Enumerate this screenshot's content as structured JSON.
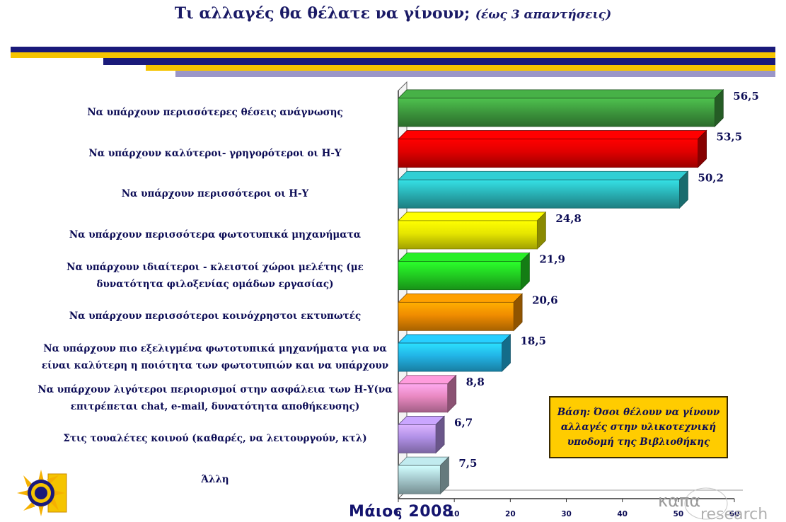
{
  "title": {
    "main": "Τι αλλαγές θα θέλατε να γίνουν;",
    "sub": "(έως 3 απαντήσεις)"
  },
  "note": {
    "line1": "Βάση: Όσοι θέλουν να γίνουν",
    "line2": "αλλαγές στην υλικοτεχνική",
    "line3": "υποδομή της Βιβλιοθήκης"
  },
  "date": "Μάιος 2008",
  "logo_right": {
    "line1": "καπα",
    "line2": "research"
  },
  "colors": {
    "navy": "#1a1a7a",
    "gold": "#f5c400",
    "lavender": "#9a96c8",
    "label": "#0c0c55"
  },
  "chart_data": {
    "type": "bar",
    "orientation": "horizontal",
    "categories": [
      [
        "Να υπάρχουν περισσότερες θέσεις ανάγνωσης"
      ],
      [
        "Να υπάρχουν καλύτεροι- γρηγορότεροι οι Η-Υ"
      ],
      [
        "Να υπάρχουν περισσότεροι οι Η-Υ"
      ],
      [
        "Να υπάρχουν περισσότερα φωτοτυπικά μηχανήματα"
      ],
      [
        "Να υπάρχουν ιδιαίτεροι - κλειστοί  χώροι μελέτης (με",
        "δυνατότητα φιλοξενίας ομάδων εργασίας)"
      ],
      [
        "Να υπάρχουν περισσότεροι κοινόχρηστοι εκτυπωτές"
      ],
      [
        "Να υπάρχουν πιο εξελιγμένα φωτοτυπικά μηχανήματα για να",
        "είναι καλύτερη η ποιότητα των φωτοτυπιών και να υπάρχουν"
      ],
      [
        "Να υπάρχουν λιγότεροι περιορισμοί στην ασφάλεια των Η-Υ(να",
        "επιτρέπεται chat, e-mail, δυνατότητα αποθήκευσης)"
      ],
      [
        "Στις τουαλέτες κοινού (καθαρές, να λειτουργούν, κτλ)"
      ],
      [
        "Άλλη"
      ]
    ],
    "values": [
      56.5,
      53.5,
      50.2,
      24.8,
      21.9,
      20.6,
      18.5,
      8.8,
      6.7,
      7.5
    ],
    "value_labels": [
      "56,5",
      "53,5",
      "50,2",
      "24,8",
      "21,9",
      "20,6",
      "18,5",
      "8,8",
      "6,7",
      "7,5"
    ],
    "bar_colors": [
      "#3e9a3e",
      "#e00000",
      "#2ab4b8",
      "#e6e600",
      "#22d022",
      "#f08c00",
      "#22b4e6",
      "#e888c0",
      "#b090e6",
      "#a8ccd0"
    ],
    "xlim": [
      0,
      60
    ],
    "xticks": [
      "0",
      "10",
      "20",
      "30",
      "40",
      "50",
      "60"
    ],
    "grid": false,
    "legend": "none",
    "style": "3d"
  }
}
